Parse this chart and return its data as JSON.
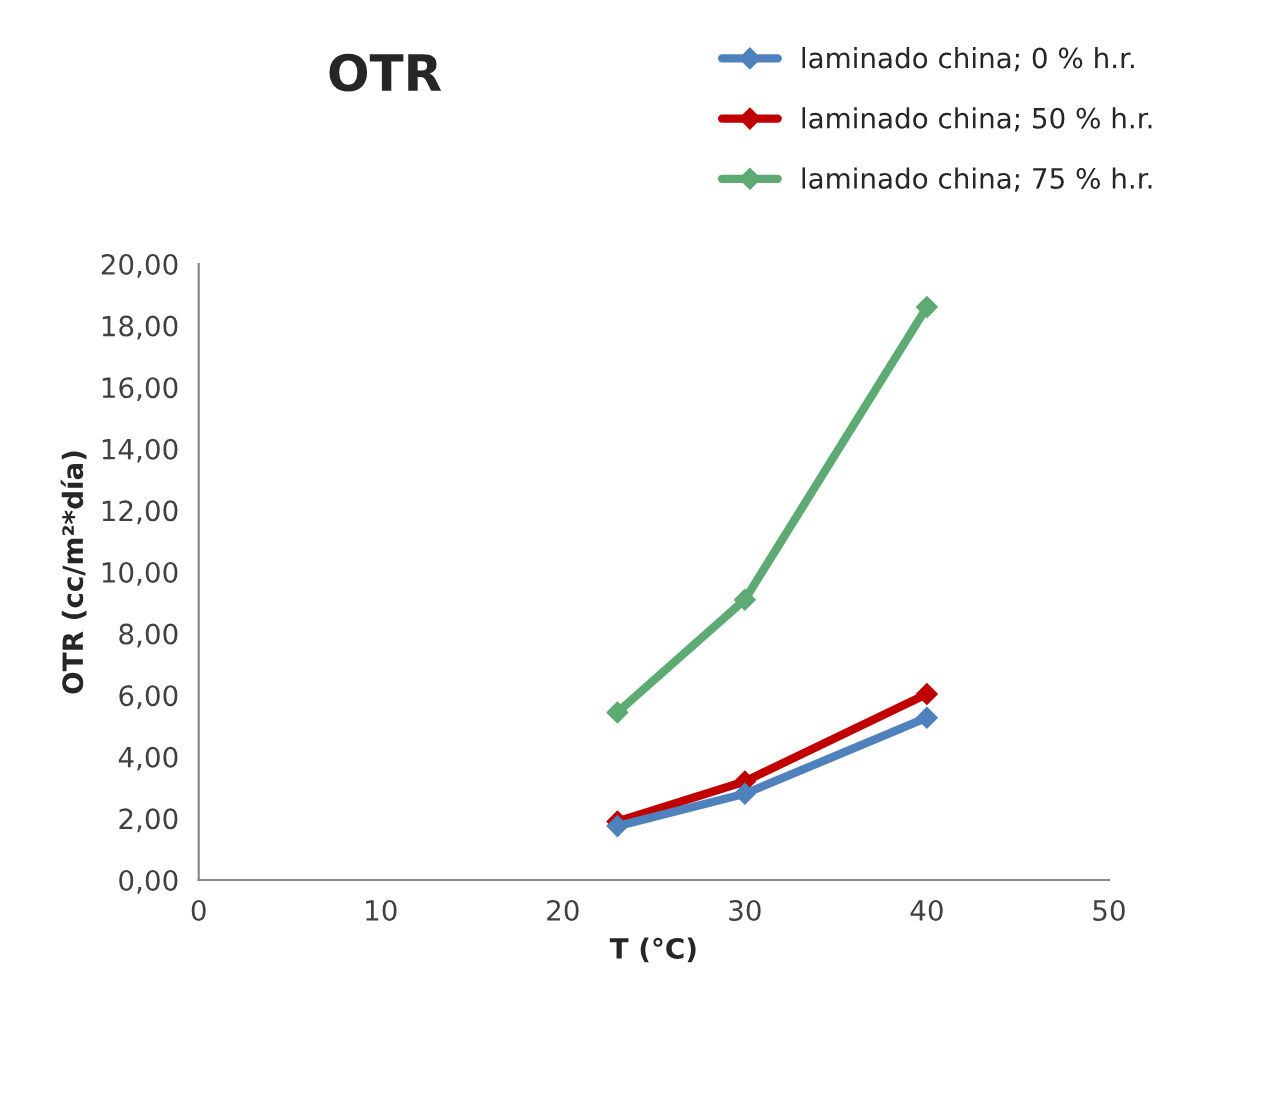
{
  "chart_data": {
    "type": "line",
    "title": "OTR",
    "xlabel": "T (°C)",
    "ylabel": "OTR (cc/m²*día)",
    "x": [
      23,
      30,
      40
    ],
    "series": [
      {
        "name": "laminado china; 0 % h.r.",
        "color": "#4f81bd",
        "values": [
          1.75,
          2.8,
          5.27
        ]
      },
      {
        "name": "laminado china; 50 % h.r.",
        "color": "#c00000",
        "values": [
          1.9,
          3.2,
          6.04
        ]
      },
      {
        "name": "laminado china; 75 % h.r.",
        "color": "#5daa73",
        "values": [
          5.44,
          9.1,
          18.6
        ]
      }
    ],
    "xlim": [
      0,
      50
    ],
    "xticks": [
      0,
      10,
      20,
      30,
      40,
      50
    ],
    "ylim": [
      0,
      20
    ],
    "yticks": [
      {
        "value": 0,
        "label": "0,00"
      },
      {
        "value": 2,
        "label": "2,00"
      },
      {
        "value": 4,
        "label": "4,00"
      },
      {
        "value": 6,
        "label": "6,00"
      },
      {
        "value": 8,
        "label": "8,00"
      },
      {
        "value": 10,
        "label": "10,00"
      },
      {
        "value": 12,
        "label": "12,00"
      },
      {
        "value": 14,
        "label": "14,00"
      },
      {
        "value": 16,
        "label": "16,00"
      },
      {
        "value": 18,
        "label": "18,00"
      },
      {
        "value": 20,
        "label": "20,00"
      }
    ],
    "grid": false,
    "legend": "top right",
    "marker": "diamond",
    "line_style": "solid"
  }
}
